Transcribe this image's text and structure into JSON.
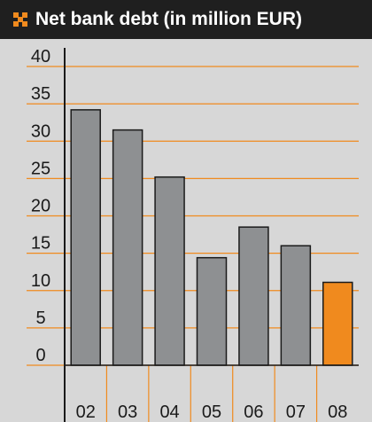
{
  "header": {
    "title": "Net bank debt (in million EUR)"
  },
  "icons": {
    "title": "orange-pinwheel-icon"
  },
  "colors": {
    "bar": "#8e9092",
    "highlight": "#f08a1e",
    "grid": "#f08a1e",
    "background": "#d7d7d7",
    "title_bar": "#1f1f1f"
  },
  "chart_data": {
    "type": "bar",
    "title": "Net bank debt (in million EUR)",
    "xlabel": "",
    "ylabel": "",
    "categories": [
      "02",
      "03",
      "04",
      "05",
      "06",
      "07",
      "08"
    ],
    "values": [
      34.2,
      31.5,
      25.2,
      14.4,
      18.5,
      16.0,
      11.1
    ],
    "highlight_index": 6,
    "ylim": [
      0,
      40
    ],
    "yticks": [
      0,
      5,
      10,
      15,
      20,
      25,
      30,
      35,
      40
    ],
    "grid": true
  }
}
